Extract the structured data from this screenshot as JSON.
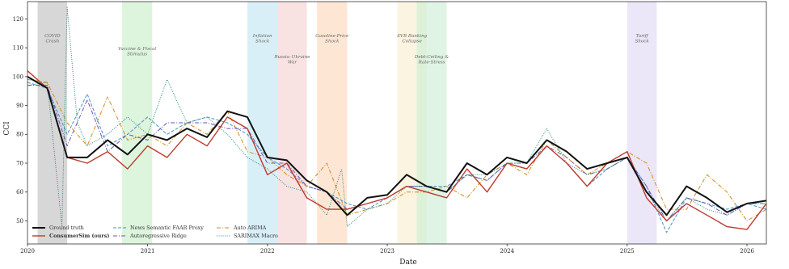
{
  "chart_data": {
    "type": "line",
    "title": "",
    "xlabel": "Date",
    "ylabel": "CCI",
    "x_ticks": [
      "2020",
      "2021",
      "2022",
      "2023",
      "2024",
      "2025",
      "2026"
    ],
    "y_ticks": [
      50,
      60,
      70,
      80,
      90,
      100,
      110,
      120
    ],
    "xlim": [
      "2020-01-01",
      "2026-03-01"
    ],
    "ylim": [
      42,
      126
    ],
    "grid": false,
    "legend_position": "lower-left",
    "events": [
      {
        "label": [
          "COVID",
          "Crash"
        ],
        "start": "2020-02-01",
        "end": "2020-05-01",
        "color": "#bdbdbd"
      },
      {
        "label": [
          "Vaccine & Fiscal",
          "Stimulus"
        ],
        "start": "2020-10-15",
        "end": "2021-01-15",
        "color": "#c7ecc7"
      },
      {
        "label": [
          "Inflation",
          "Shock"
        ],
        "start": "2021-11-01",
        "end": "2022-02-01",
        "color": "#bfe4f3"
      },
      {
        "label": [
          "Russia–Ukraine",
          "War"
        ],
        "start": "2022-02-01",
        "end": "2022-05-01",
        "color": "#f4cfcf"
      },
      {
        "label": [
          "Gasoline-Price",
          "Shock"
        ],
        "start": "2022-06-01",
        "end": "2022-09-01",
        "color": "#fbd7b8"
      },
      {
        "label": [
          "SVB Banking",
          "Collapse"
        ],
        "start": "2023-02-01",
        "end": "2023-05-01",
        "color": "#f8eccb"
      },
      {
        "label": [
          "Debt-Ceiling &",
          "Rate-Stress"
        ],
        "start": "2023-04-01",
        "end": "2023-07-01",
        "color": "#c9ecd2"
      },
      {
        "label": [
          "Tariff",
          "Shock"
        ],
        "start": "2025-01-01",
        "end": "2025-04-01",
        "color": "#ddd6f3"
      }
    ],
    "series": [
      {
        "name": "Ground truth",
        "color": "#111111",
        "style": "solid",
        "width": 2.0,
        "x": [
          "2020-01-01",
          "2020-03-01",
          "2020-05-01",
          "2020-07-01",
          "2020-09-01",
          "2020-11-01",
          "2021-01-01",
          "2021-03-01",
          "2021-05-01",
          "2021-07-01",
          "2021-09-01",
          "2021-11-01",
          "2022-01-01",
          "2022-03-01",
          "2022-05-01",
          "2022-07-01",
          "2022-09-01",
          "2022-11-01",
          "2023-01-01",
          "2023-03-01",
          "2023-05-01",
          "2023-07-01",
          "2023-09-01",
          "2023-11-01",
          "2024-01-01",
          "2024-03-01",
          "2024-05-01",
          "2024-07-01",
          "2024-09-01",
          "2024-11-01",
          "2025-01-01",
          "2025-03-01",
          "2025-05-01",
          "2025-07-01",
          "2025-09-01",
          "2025-11-01",
          "2026-01-01",
          "2026-03-01"
        ],
        "y": [
          100,
          96,
          72,
          72,
          78,
          73,
          80,
          78,
          82,
          79,
          88,
          86,
          72,
          71,
          64,
          60,
          52,
          58,
          59,
          66,
          62,
          60,
          70,
          66,
          72,
          70,
          78,
          74,
          68,
          70,
          72,
          60,
          52,
          62,
          58,
          53,
          56,
          57
        ]
      },
      {
        "name": "ConsumerSim (ours)",
        "color": "#c0392b",
        "style": "solid",
        "width": 1.4,
        "x": [
          "2020-01-01",
          "2020-03-01",
          "2020-05-01",
          "2020-07-01",
          "2020-09-01",
          "2020-11-01",
          "2021-01-01",
          "2021-03-01",
          "2021-05-01",
          "2021-07-01",
          "2021-09-01",
          "2021-11-01",
          "2022-01-01",
          "2022-03-01",
          "2022-05-01",
          "2022-07-01",
          "2022-09-01",
          "2022-11-01",
          "2023-01-01",
          "2023-03-01",
          "2023-05-01",
          "2023-07-01",
          "2023-09-01",
          "2023-11-01",
          "2024-01-01",
          "2024-03-01",
          "2024-05-01",
          "2024-07-01",
          "2024-09-01",
          "2024-11-01",
          "2025-01-01",
          "2025-03-01",
          "2025-05-01",
          "2025-07-01",
          "2025-09-01",
          "2025-11-01",
          "2026-01-01",
          "2026-03-01"
        ],
        "y": [
          102,
          96,
          72,
          70,
          74,
          68,
          76,
          72,
          80,
          76,
          86,
          82,
          66,
          70,
          58,
          54,
          54,
          56,
          58,
          62,
          60,
          58,
          68,
          60,
          70,
          68,
          76,
          70,
          62,
          70,
          74,
          58,
          50,
          56,
          52,
          48,
          47,
          56
        ]
      },
      {
        "name": "News Semantic FAAR Proxy",
        "color": "#4a90c4",
        "style": "dashed",
        "width": 1.0,
        "x": [
          "2020-01-01",
          "2020-03-01",
          "2020-05-01",
          "2020-07-01",
          "2020-09-01",
          "2020-11-01",
          "2021-01-01",
          "2021-03-01",
          "2021-05-01",
          "2021-07-01",
          "2021-09-01",
          "2021-11-01",
          "2022-01-01",
          "2022-03-01",
          "2022-05-01",
          "2022-07-01",
          "2022-09-01",
          "2022-11-01",
          "2023-01-01",
          "2023-03-01",
          "2023-05-01",
          "2023-07-01",
          "2023-09-01",
          "2023-11-01",
          "2024-01-01",
          "2024-03-01",
          "2024-05-01",
          "2024-07-01",
          "2024-09-01",
          "2024-11-01",
          "2025-01-01",
          "2025-03-01",
          "2025-05-01",
          "2025-07-01",
          "2025-09-01",
          "2025-11-01",
          "2026-01-01",
          "2026-03-01"
        ],
        "y": [
          98,
          96,
          80,
          94,
          76,
          80,
          86,
          80,
          84,
          86,
          84,
          80,
          72,
          68,
          62,
          60,
          56,
          54,
          58,
          62,
          62,
          62,
          66,
          64,
          70,
          68,
          76,
          70,
          62,
          68,
          72,
          62,
          46,
          58,
          56,
          54,
          56,
          54
        ]
      },
      {
        "name": "Autoregressive Ridge",
        "color": "#6a55b5",
        "style": "dashdot",
        "width": 1.0,
        "x": [
          "2020-01-01",
          "2020-03-01",
          "2020-05-01",
          "2020-07-01",
          "2020-09-01",
          "2020-11-01",
          "2021-01-01",
          "2021-03-01",
          "2021-05-01",
          "2021-07-01",
          "2021-09-01",
          "2021-11-01",
          "2022-01-01",
          "2022-03-01",
          "2022-05-01",
          "2022-07-01",
          "2022-09-01",
          "2022-11-01",
          "2023-01-01",
          "2023-03-01",
          "2023-05-01",
          "2023-07-01",
          "2023-09-01",
          "2023-11-01",
          "2024-01-01",
          "2024-03-01",
          "2024-05-01",
          "2024-07-01",
          "2024-09-01",
          "2024-11-01",
          "2025-01-01",
          "2025-03-01",
          "2025-05-01",
          "2025-07-01",
          "2025-09-01",
          "2025-11-01",
          "2026-01-01",
          "2026-03-01"
        ],
        "y": [
          97,
          97,
          76,
          92,
          74,
          80,
          78,
          84,
          84,
          84,
          82,
          82,
          70,
          70,
          62,
          60,
          54,
          56,
          58,
          62,
          62,
          60,
          66,
          64,
          70,
          70,
          76,
          72,
          66,
          68,
          72,
          62,
          50,
          58,
          56,
          52,
          56,
          56
        ]
      },
      {
        "name": "Auto ARIMA",
        "color": "#d4881c",
        "style": "dashdot",
        "width": 1.0,
        "x": [
          "2020-01-01",
          "2020-03-01",
          "2020-05-01",
          "2020-07-01",
          "2020-09-01",
          "2020-11-01",
          "2021-01-01",
          "2021-03-01",
          "2021-05-01",
          "2021-07-01",
          "2021-09-01",
          "2021-11-01",
          "2022-01-01",
          "2022-03-01",
          "2022-05-01",
          "2022-07-01",
          "2022-09-01",
          "2022-11-01",
          "2023-01-01",
          "2023-03-01",
          "2023-05-01",
          "2023-07-01",
          "2023-09-01",
          "2023-11-01",
          "2024-01-01",
          "2024-03-01",
          "2024-05-01",
          "2024-07-01",
          "2024-09-01",
          "2024-11-01",
          "2025-01-01",
          "2025-03-01",
          "2025-05-01",
          "2025-07-01",
          "2025-09-01",
          "2025-11-01",
          "2026-01-01",
          "2026-03-01"
        ],
        "y": [
          99,
          98,
          84,
          76,
          93,
          78,
          80,
          76,
          84,
          80,
          88,
          74,
          72,
          66,
          62,
          70,
          52,
          54,
          56,
          60,
          60,
          62,
          58,
          66,
          70,
          66,
          78,
          72,
          66,
          70,
          74,
          70,
          54,
          54,
          66,
          60,
          50,
          54
        ]
      },
      {
        "name": "SARIMAX Macro",
        "color": "#2e8b7a",
        "style": "dotted",
        "width": 1.0,
        "x": [
          "2020-01-01",
          "2020-03-01",
          "2020-04-15",
          "2020-05-01",
          "2020-06-01",
          "2020-07-01",
          "2020-09-01",
          "2020-11-01",
          "2021-01-01",
          "2021-03-01",
          "2021-05-01",
          "2021-07-01",
          "2021-09-01",
          "2021-11-01",
          "2022-01-01",
          "2022-03-01",
          "2022-05-01",
          "2022-07-01",
          "2022-08-15",
          "2022-09-01",
          "2022-11-01",
          "2023-01-01",
          "2023-03-01",
          "2023-05-01",
          "2023-07-01",
          "2023-09-01",
          "2023-11-01",
          "2024-01-01",
          "2024-03-01",
          "2024-05-01",
          "2024-07-01",
          "2024-09-01",
          "2024-11-01",
          "2025-01-01",
          "2025-03-01",
          "2025-05-01",
          "2025-07-01",
          "2025-09-01",
          "2025-11-01",
          "2026-01-01",
          "2026-03-01"
        ],
        "y": [
          97,
          98,
          48,
          124,
          84,
          76,
          80,
          86,
          80,
          99,
          84,
          86,
          80,
          72,
          68,
          62,
          60,
          52,
          68,
          48,
          54,
          56,
          62,
          62,
          60,
          66,
          66,
          70,
          70,
          82,
          70,
          66,
          68,
          72,
          60,
          50,
          58,
          54,
          52,
          56,
          56
        ]
      }
    ]
  }
}
